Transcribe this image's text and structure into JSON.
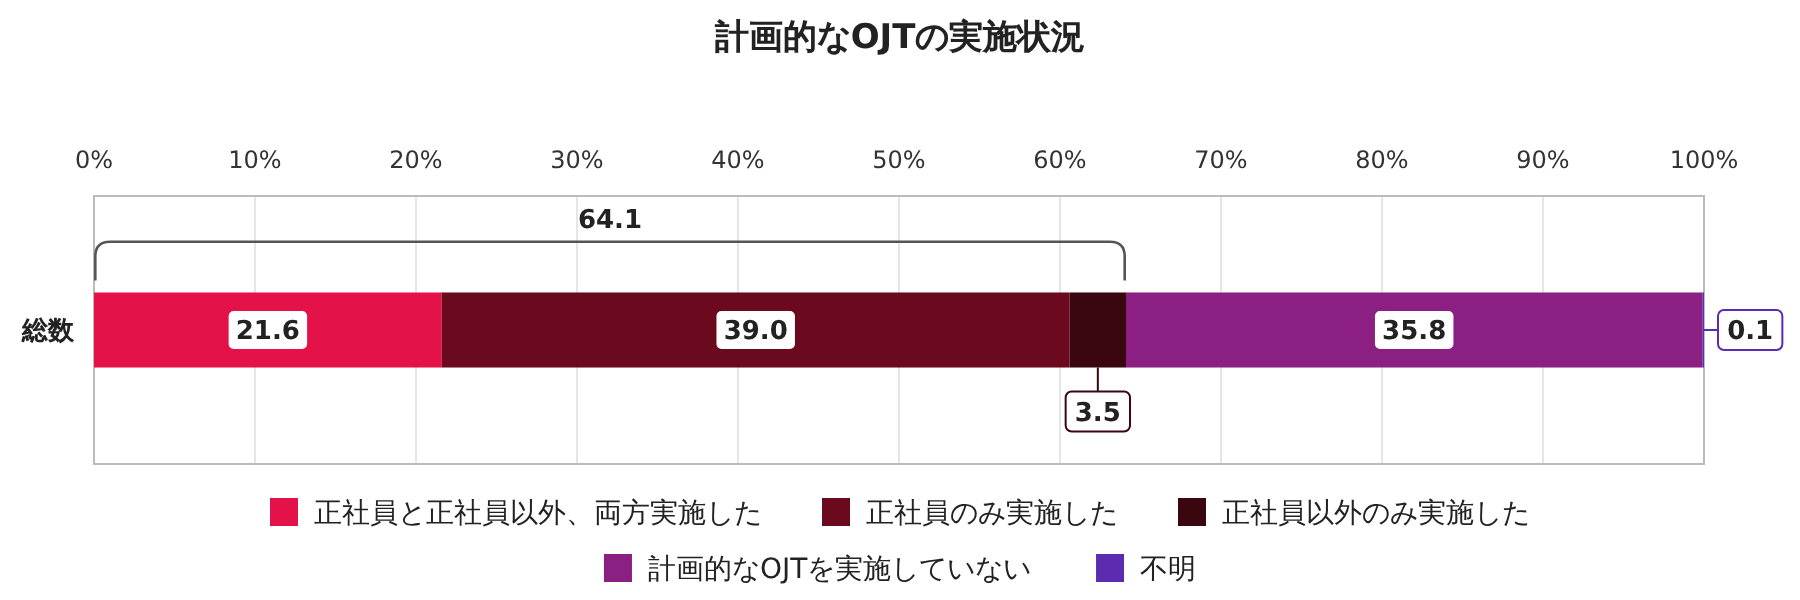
{
  "chart_data": {
    "type": "bar",
    "orientation": "horizontal",
    "stacked": true,
    "title": "計画的なOJTの実施状況",
    "categories": [
      "総数"
    ],
    "series": [
      {
        "name": "正社員と正社員以外、両方実施した",
        "color": "#e5124a",
        "values": [
          21.6
        ],
        "value_labels": [
          "21.6"
        ]
      },
      {
        "name": "正社員のみ実施した",
        "color": "#6b0a1e",
        "values": [
          39.0
        ],
        "value_labels": [
          "39.0"
        ]
      },
      {
        "name": "正社員以外のみ実施した",
        "color": "#3a0610",
        "values": [
          3.5
        ],
        "value_labels": [
          "3.5"
        ]
      },
      {
        "name": "計画的なOJTを実施していない",
        "color": "#8b1f82",
        "values": [
          35.8
        ],
        "value_labels": [
          "35.8"
        ]
      },
      {
        "name": "不明",
        "color": "#5b2bb0",
        "values": [
          0.1
        ],
        "value_labels": [
          "0.1"
        ]
      }
    ],
    "xlim": [
      0,
      100
    ],
    "xticks": [
      {
        "value": 0,
        "label": "0%"
      },
      {
        "value": 10,
        "label": "10%"
      },
      {
        "value": 20,
        "label": "20%"
      },
      {
        "value": 30,
        "label": "30%"
      },
      {
        "value": 40,
        "label": "40%"
      },
      {
        "value": 50,
        "label": "50%"
      },
      {
        "value": 60,
        "label": "60%"
      },
      {
        "value": 70,
        "label": "70%"
      },
      {
        "value": 80,
        "label": "80%"
      },
      {
        "value": 90,
        "label": "90%"
      },
      {
        "value": 100,
        "label": "100%"
      }
    ],
    "grid": "x",
    "legend": "bottom",
    "annotations": [
      "64.1"
    ]
  }
}
